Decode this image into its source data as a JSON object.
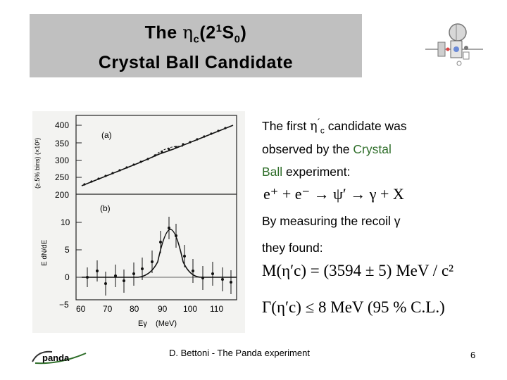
{
  "title": {
    "line1_prefix": "The ",
    "eta": "η",
    "eta_sub": "c",
    "paren_open": "(2",
    "sup": "1",
    "S": "S",
    "S_sub": "0",
    "paren_close": ")",
    "line2": "Crystal Ball Candidate"
  },
  "body": {
    "line1_prefix": "The first ",
    "line1_eta": "η",
    "line1_prime": "´",
    "line1_sub": "c",
    "line1_suffix": " candidate was",
    "line2_prefix": "observed by the ",
    "line2_green": "Crystal",
    "line3_green": "Ball",
    "line3_suffix": " experiment:",
    "reaction": "e⁺ + e⁻ → ψ′ → γ + X",
    "line4": "By measuring the recoil γ",
    "line5": "they found:",
    "mass_eq": "M(η′c) = (3594 ± 5) MeV / c²",
    "width_eq": "Γ(η′c) ≤ 8 MeV (95 % C.L.)"
  },
  "figure": {
    "panel_a_label": "(a)",
    "panel_b_label": "(b)",
    "y_label_top": "(≥.5% bins) (×10²)",
    "y_label_bottom": "E dN/dE",
    "x_label": "Eγ    (MeV)",
    "yticks_a": [
      "400",
      "350",
      "300",
      "250",
      "200"
    ],
    "yticks_b": [
      "10",
      "5",
      "0",
      "−5"
    ],
    "xticks": [
      "60",
      "70",
      "80",
      "90",
      "100",
      "110"
    ]
  },
  "footer": {
    "text": "D. Bettoni  - The Panda experiment",
    "page": "6",
    "logo": "panda"
  }
}
